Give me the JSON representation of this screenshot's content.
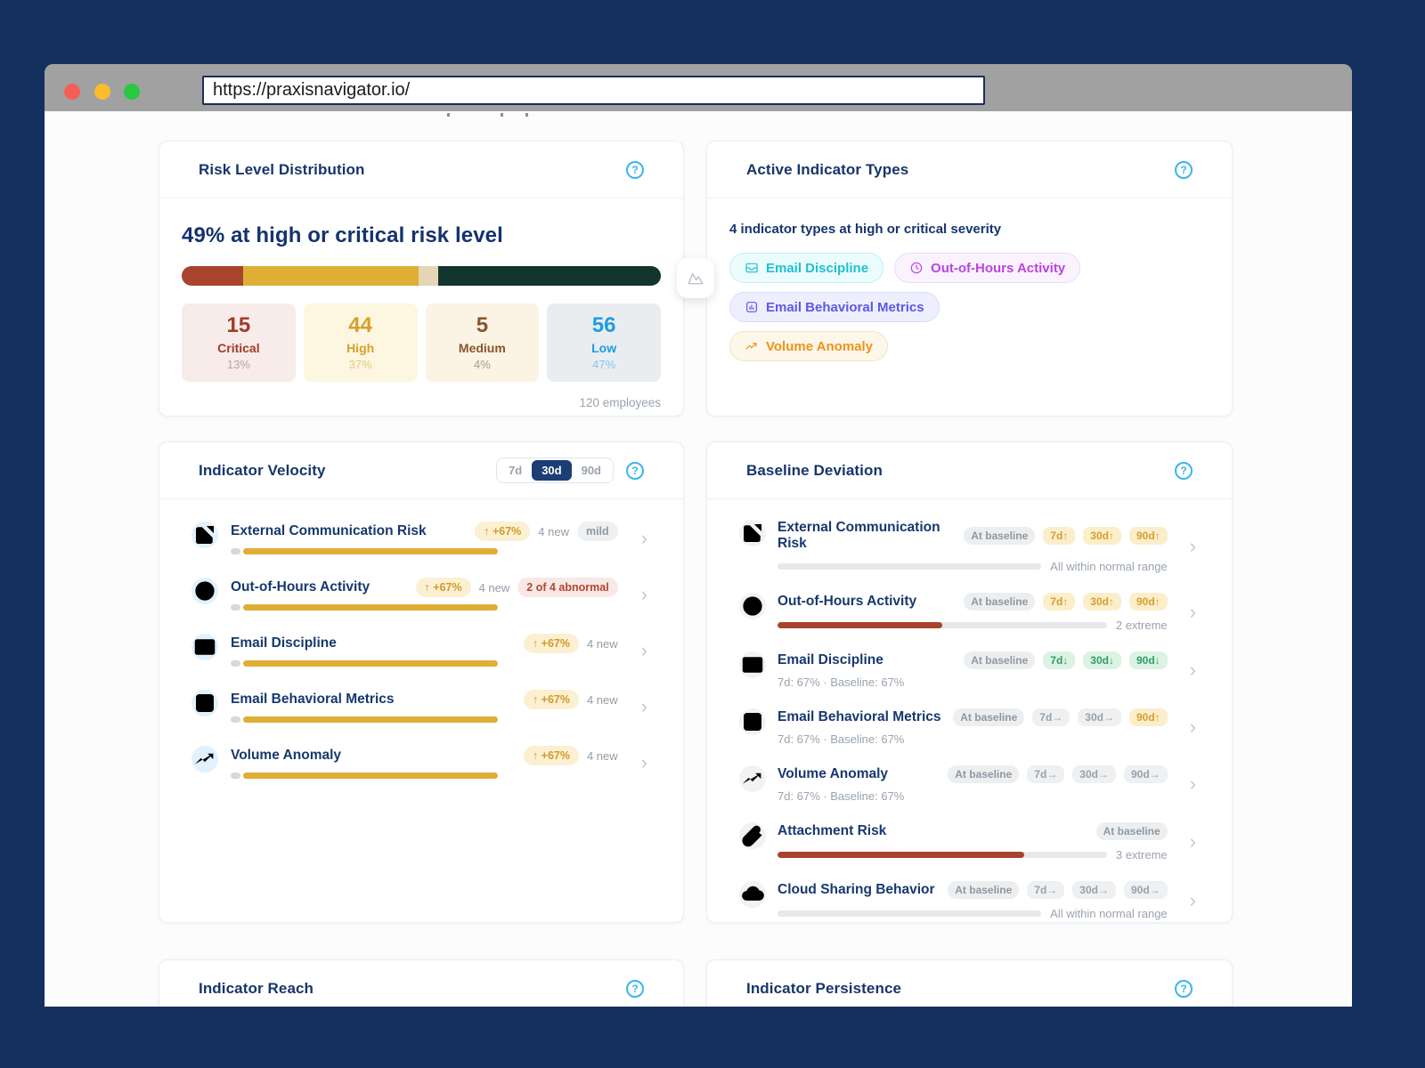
{
  "browser": {
    "url": "https://praxisnavigator.io/"
  },
  "colors": {
    "background_navy": "#14305e",
    "title_navy": "#17356b",
    "accent_help_blue": "#3ab5ec",
    "gold": "#dfae36",
    "alert_red": "#a8432e",
    "green": "#2da164"
  },
  "cards": {
    "risk_distribution": {
      "title": "Risk Level Distribution",
      "headline": "49% at high or critical risk level",
      "footer": "120 employees",
      "segments": [
        {
          "label": "Critical",
          "value": 15,
          "pct": "13%",
          "pct_value": 13,
          "bar_color": "#a8432e",
          "num_color": "#a13a28",
          "pct_color": "#bda19b",
          "bg": "#f7ecea"
        },
        {
          "label": "High",
          "value": 44,
          "pct": "37%",
          "pct_value": 37,
          "bar_color": "#dfaf35",
          "num_color": "#d7a02b",
          "pct_color": "#e4c87e",
          "bg": "#fdf6e1"
        },
        {
          "label": "Medium",
          "value": 5,
          "pct": "4%",
          "pct_value": 4,
          "bar_color": "#e3d5b6",
          "num_color": "#8a552f",
          "pct_color": "#ab9b8b",
          "bg": "#fbf3e3"
        },
        {
          "label": "Low",
          "value": 56,
          "pct": "47%",
          "pct_value": 47,
          "bar_color": "#12352d",
          "num_color": "#1e9ce3",
          "pct_color": "#82c6ef",
          "bg": "#e9edf0"
        }
      ]
    },
    "active_indicators": {
      "title": "Active Indicator Types",
      "subtitle": "4 indicator types at high or critical severity",
      "chips": [
        {
          "label": "Email Discipline",
          "icon": "mail",
          "text_color": "#1fc0d2",
          "bg": "#ebfcfd",
          "border": "#c2eef3"
        },
        {
          "label": "Out-of-Hours Activity",
          "icon": "clock",
          "text_color": "#bb44e0",
          "bg": "#faf3fd",
          "border": "#ecd9f6"
        },
        {
          "label": "Email Behavioral Metrics",
          "icon": "chart",
          "text_color": "#6057e2",
          "bg": "#eeeffe",
          "border": "#d9dcf8"
        },
        {
          "label": "Volume Anomaly",
          "icon": "trend",
          "text_color": "#ef9316",
          "bg": "#fdf7ea",
          "border": "#f3e4bd"
        }
      ]
    },
    "velocity": {
      "title": "Indicator Velocity",
      "range_options": [
        "7d",
        "30d",
        "90d"
      ],
      "active_range": "30d",
      "rows": [
        {
          "label": "External Communication Risk",
          "icon": "external-link",
          "change": "↑ +67%",
          "new_count": "4 new",
          "status": {
            "text": "mild",
            "type": "gray"
          }
        },
        {
          "label": "Out-of-Hours Activity",
          "icon": "clock",
          "change": "↑ +67%",
          "new_count": "4 new",
          "status": {
            "text": "2 of 4 abnormal",
            "type": "red"
          }
        },
        {
          "label": "Email Discipline",
          "icon": "mail",
          "change": "↑ +67%",
          "new_count": "4 new",
          "status": null
        },
        {
          "label": "Email Behavioral Metrics",
          "icon": "chart",
          "change": "↑ +67%",
          "new_count": "4 new",
          "status": null
        },
        {
          "label": "Volume Anomaly",
          "icon": "trend",
          "change": "↑ +67%",
          "new_count": "4 new",
          "status": null
        }
      ]
    },
    "baseline": {
      "title": "Baseline Deviation",
      "rows": [
        {
          "label": "External Communication Risk",
          "icon": "external-link",
          "badges": [
            {
              "text": "At baseline",
              "type": "muted"
            },
            {
              "text": "7d↑",
              "type": "gold"
            },
            {
              "text": "30d↑",
              "type": "gold"
            },
            {
              "text": "90d↑",
              "type": "gold"
            }
          ],
          "bar": {
            "fill_pct": 0,
            "note": "All within normal range"
          }
        },
        {
          "label": "Out-of-Hours Activity",
          "icon": "clock",
          "badges": [
            {
              "text": "At baseline",
              "type": "muted"
            },
            {
              "text": "7d↑",
              "type": "gold"
            },
            {
              "text": "30d↑",
              "type": "gold"
            },
            {
              "text": "90d↑",
              "type": "gold"
            }
          ],
          "bar": {
            "fill_pct": 50,
            "note": "2 extreme"
          }
        },
        {
          "label": "Email Discipline",
          "icon": "mail",
          "badges": [
            {
              "text": "At baseline",
              "type": "muted"
            },
            {
              "text": "7d↓",
              "type": "green"
            },
            {
              "text": "30d↓",
              "type": "green"
            },
            {
              "text": "90d↓",
              "type": "green"
            }
          ],
          "sub": "7d: 67% · Baseline: 67%"
        },
        {
          "label": "Email Behavioral Metrics",
          "icon": "chart",
          "badges": [
            {
              "text": "At baseline",
              "type": "muted"
            },
            {
              "text": "7d→",
              "type": "arrow"
            },
            {
              "text": "30d→",
              "type": "arrow"
            },
            {
              "text": "90d↑",
              "type": "gold"
            }
          ],
          "sub": "7d: 67% · Baseline: 67%"
        },
        {
          "label": "Volume Anomaly",
          "icon": "trend",
          "badges": [
            {
              "text": "At baseline",
              "type": "muted"
            },
            {
              "text": "7d→",
              "type": "arrow"
            },
            {
              "text": "30d→",
              "type": "arrow"
            },
            {
              "text": "90d→",
              "type": "arrow"
            }
          ],
          "sub": "7d: 67% · Baseline: 67%"
        },
        {
          "label": "Attachment Risk",
          "icon": "paperclip",
          "badges": [
            {
              "text": "At baseline",
              "type": "muted"
            }
          ],
          "bar": {
            "fill_pct": 75,
            "note": "3 extreme"
          }
        },
        {
          "label": "Cloud Sharing Behavior",
          "icon": "cloud",
          "badges": [
            {
              "text": "At baseline",
              "type": "muted"
            },
            {
              "text": "7d→",
              "type": "arrow"
            },
            {
              "text": "30d→",
              "type": "arrow"
            },
            {
              "text": "90d→",
              "type": "arrow"
            }
          ],
          "bar": {
            "fill_pct": 0,
            "note": "All within normal range"
          }
        }
      ]
    },
    "bottom": [
      {
        "title": "Indicator Reach"
      },
      {
        "title": "Indicator Persistence"
      }
    ]
  }
}
